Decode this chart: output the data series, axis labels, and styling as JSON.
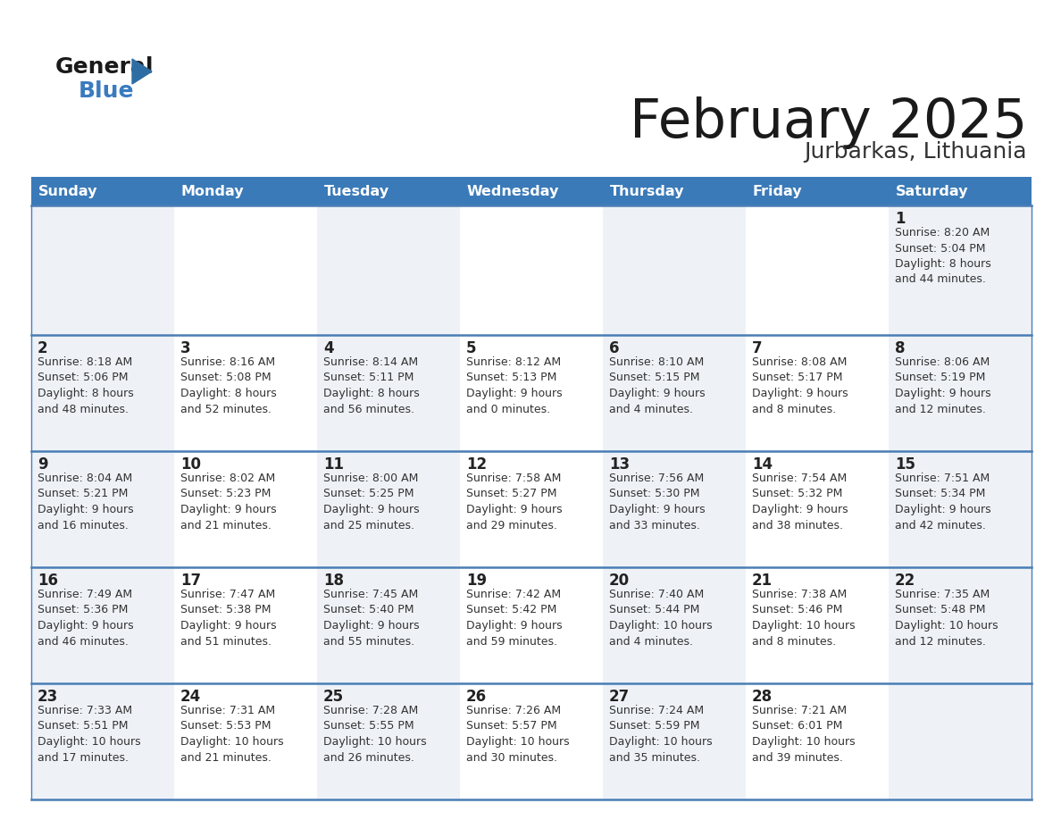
{
  "title": "February 2025",
  "subtitle": "Jurbarkas, Lithuania",
  "days_of_week": [
    "Sunday",
    "Monday",
    "Tuesday",
    "Wednesday",
    "Thursday",
    "Friday",
    "Saturday"
  ],
  "header_bg": "#3a7ab8",
  "header_text": "#ffffff",
  "cell_bg_even": "#eef2f7",
  "cell_bg_odd": "#ffffff",
  "border_color": "#3a7ab8",
  "row_sep_color": "#4a7db5",
  "day_num_color": "#222222",
  "info_text_color": "#333333",
  "title_color": "#1a1a1a",
  "subtitle_color": "#333333",
  "calendar_data": [
    {
      "day": 1,
      "col": 6,
      "row": 0,
      "sunrise": "8:20 AM",
      "sunset": "5:04 PM",
      "daylight_h": "8 hours",
      "daylight_m": "44 minutes."
    },
    {
      "day": 2,
      "col": 0,
      "row": 1,
      "sunrise": "8:18 AM",
      "sunset": "5:06 PM",
      "daylight_h": "8 hours",
      "daylight_m": "48 minutes."
    },
    {
      "day": 3,
      "col": 1,
      "row": 1,
      "sunrise": "8:16 AM",
      "sunset": "5:08 PM",
      "daylight_h": "8 hours",
      "daylight_m": "52 minutes."
    },
    {
      "day": 4,
      "col": 2,
      "row": 1,
      "sunrise": "8:14 AM",
      "sunset": "5:11 PM",
      "daylight_h": "8 hours",
      "daylight_m": "56 minutes."
    },
    {
      "day": 5,
      "col": 3,
      "row": 1,
      "sunrise": "8:12 AM",
      "sunset": "5:13 PM",
      "daylight_h": "9 hours",
      "daylight_m": "0 minutes."
    },
    {
      "day": 6,
      "col": 4,
      "row": 1,
      "sunrise": "8:10 AM",
      "sunset": "5:15 PM",
      "daylight_h": "9 hours",
      "daylight_m": "4 minutes."
    },
    {
      "day": 7,
      "col": 5,
      "row": 1,
      "sunrise": "8:08 AM",
      "sunset": "5:17 PM",
      "daylight_h": "9 hours",
      "daylight_m": "8 minutes."
    },
    {
      "day": 8,
      "col": 6,
      "row": 1,
      "sunrise": "8:06 AM",
      "sunset": "5:19 PM",
      "daylight_h": "9 hours",
      "daylight_m": "12 minutes."
    },
    {
      "day": 9,
      "col": 0,
      "row": 2,
      "sunrise": "8:04 AM",
      "sunset": "5:21 PM",
      "daylight_h": "9 hours",
      "daylight_m": "16 minutes."
    },
    {
      "day": 10,
      "col": 1,
      "row": 2,
      "sunrise": "8:02 AM",
      "sunset": "5:23 PM",
      "daylight_h": "9 hours",
      "daylight_m": "21 minutes."
    },
    {
      "day": 11,
      "col": 2,
      "row": 2,
      "sunrise": "8:00 AM",
      "sunset": "5:25 PM",
      "daylight_h": "9 hours",
      "daylight_m": "25 minutes."
    },
    {
      "day": 12,
      "col": 3,
      "row": 2,
      "sunrise": "7:58 AM",
      "sunset": "5:27 PM",
      "daylight_h": "9 hours",
      "daylight_m": "29 minutes."
    },
    {
      "day": 13,
      "col": 4,
      "row": 2,
      "sunrise": "7:56 AM",
      "sunset": "5:30 PM",
      "daylight_h": "9 hours",
      "daylight_m": "33 minutes."
    },
    {
      "day": 14,
      "col": 5,
      "row": 2,
      "sunrise": "7:54 AM",
      "sunset": "5:32 PM",
      "daylight_h": "9 hours",
      "daylight_m": "38 minutes."
    },
    {
      "day": 15,
      "col": 6,
      "row": 2,
      "sunrise": "7:51 AM",
      "sunset": "5:34 PM",
      "daylight_h": "9 hours",
      "daylight_m": "42 minutes."
    },
    {
      "day": 16,
      "col": 0,
      "row": 3,
      "sunrise": "7:49 AM",
      "sunset": "5:36 PM",
      "daylight_h": "9 hours",
      "daylight_m": "46 minutes."
    },
    {
      "day": 17,
      "col": 1,
      "row": 3,
      "sunrise": "7:47 AM",
      "sunset": "5:38 PM",
      "daylight_h": "9 hours",
      "daylight_m": "51 minutes."
    },
    {
      "day": 18,
      "col": 2,
      "row": 3,
      "sunrise": "7:45 AM",
      "sunset": "5:40 PM",
      "daylight_h": "9 hours",
      "daylight_m": "55 minutes."
    },
    {
      "day": 19,
      "col": 3,
      "row": 3,
      "sunrise": "7:42 AM",
      "sunset": "5:42 PM",
      "daylight_h": "9 hours",
      "daylight_m": "59 minutes."
    },
    {
      "day": 20,
      "col": 4,
      "row": 3,
      "sunrise": "7:40 AM",
      "sunset": "5:44 PM",
      "daylight_h": "10 hours",
      "daylight_m": "4 minutes."
    },
    {
      "day": 21,
      "col": 5,
      "row": 3,
      "sunrise": "7:38 AM",
      "sunset": "5:46 PM",
      "daylight_h": "10 hours",
      "daylight_m": "8 minutes."
    },
    {
      "day": 22,
      "col": 6,
      "row": 3,
      "sunrise": "7:35 AM",
      "sunset": "5:48 PM",
      "daylight_h": "10 hours",
      "daylight_m": "12 minutes."
    },
    {
      "day": 23,
      "col": 0,
      "row": 4,
      "sunrise": "7:33 AM",
      "sunset": "5:51 PM",
      "daylight_h": "10 hours",
      "daylight_m": "17 minutes."
    },
    {
      "day": 24,
      "col": 1,
      "row": 4,
      "sunrise": "7:31 AM",
      "sunset": "5:53 PM",
      "daylight_h": "10 hours",
      "daylight_m": "21 minutes."
    },
    {
      "day": 25,
      "col": 2,
      "row": 4,
      "sunrise": "7:28 AM",
      "sunset": "5:55 PM",
      "daylight_h": "10 hours",
      "daylight_m": "26 minutes."
    },
    {
      "day": 26,
      "col": 3,
      "row": 4,
      "sunrise": "7:26 AM",
      "sunset": "5:57 PM",
      "daylight_h": "10 hours",
      "daylight_m": "30 minutes."
    },
    {
      "day": 27,
      "col": 4,
      "row": 4,
      "sunrise": "7:24 AM",
      "sunset": "5:59 PM",
      "daylight_h": "10 hours",
      "daylight_m": "35 minutes."
    },
    {
      "day": 28,
      "col": 5,
      "row": 4,
      "sunrise": "7:21 AM",
      "sunset": "6:01 PM",
      "daylight_h": "10 hours",
      "daylight_m": "39 minutes."
    }
  ]
}
